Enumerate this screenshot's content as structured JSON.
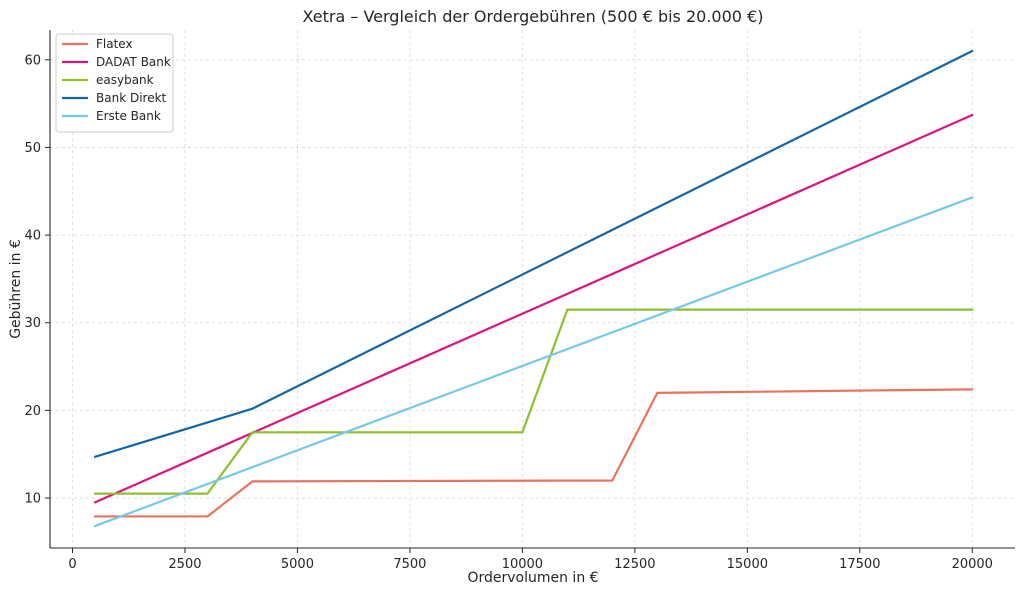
{
  "chart_data": {
    "type": "line",
    "title": "Xetra – Vergleich der Ordergebühren (500 € bis 20.000 €)",
    "xlabel": "Ordervolumen in €",
    "ylabel": "Gebühren in €",
    "xlim": [
      -500,
      20950
    ],
    "ylim": [
      4.3,
      63.4
    ],
    "xticks": [
      0,
      2500,
      5000,
      7500,
      10000,
      12500,
      15000,
      17500,
      20000
    ],
    "xtick_labels": [
      "0",
      "2500",
      "5000",
      "7500",
      "10000",
      "12500",
      "15000",
      "17500",
      "20000"
    ],
    "yticks": [
      10,
      20,
      30,
      40,
      50,
      60
    ],
    "ytick_labels": [
      "10",
      "20",
      "30",
      "40",
      "50",
      "60"
    ],
    "grid": true,
    "legend_position": "top-left",
    "series": [
      {
        "name": "Flatex",
        "color": "#E8735F",
        "points": [
          [
            500,
            7.9
          ],
          [
            3000,
            7.9
          ],
          [
            4000,
            11.9
          ],
          [
            12000,
            12.0
          ],
          [
            13000,
            22.0
          ],
          [
            20000,
            22.4
          ]
        ]
      },
      {
        "name": "DADAT Bank",
        "color": "#D9157E",
        "points": [
          [
            500,
            9.5
          ],
          [
            20000,
            53.7
          ]
        ]
      },
      {
        "name": "easybank",
        "color": "#8DBF2E",
        "points": [
          [
            500,
            10.5
          ],
          [
            3000,
            10.5
          ],
          [
            4000,
            17.5
          ],
          [
            10000,
            17.5
          ],
          [
            11000,
            31.5
          ],
          [
            20000,
            31.5
          ]
        ]
      },
      {
        "name": "Bank Direkt",
        "color": "#1366A8",
        "points": [
          [
            500,
            14.7
          ],
          [
            4000,
            20.2
          ],
          [
            20000,
            61.0
          ]
        ]
      },
      {
        "name": "Erste Bank",
        "color": "#78C8EE",
        "points": [
          [
            500,
            6.8
          ],
          [
            20000,
            44.3
          ]
        ]
      }
    ]
  }
}
